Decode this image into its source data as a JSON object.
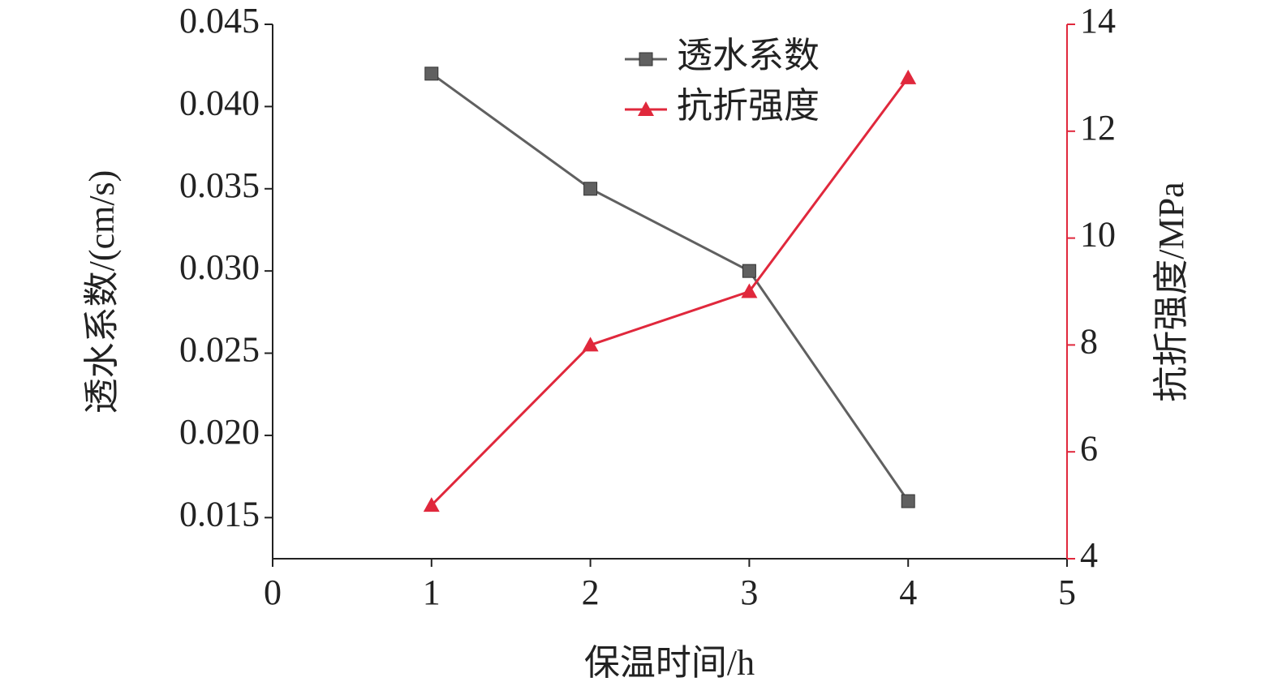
{
  "chart_data": {
    "type": "line",
    "x_label": "保温时间/h",
    "y_label": "透水系数/(cm/s)",
    "y2_label": "抗折强度/MPa",
    "x": [
      1,
      2,
      3,
      4
    ],
    "xlim": [
      0,
      5
    ],
    "xticks": [
      0,
      1,
      2,
      3,
      4,
      5
    ],
    "ylim": [
      0.0125,
      0.045
    ],
    "yticks": [
      0.015,
      {
        "value": 0.02,
        "label": "0.020"
      },
      0.025,
      {
        "value": 0.03,
        "label": "0.030"
      },
      0.035,
      {
        "value": 0.04,
        "label": "0.040"
      },
      0.045
    ],
    "y2lim": [
      4,
      14
    ],
    "y2ticks": [
      4,
      6,
      8,
      10,
      12,
      14
    ],
    "y2_color": "#e0283c",
    "legend": "top-center",
    "series": [
      {
        "name": "透水系数",
        "color": "#606060",
        "marker": "square",
        "values": [
          0.042,
          0.035,
          0.03,
          0.016
        ]
      },
      {
        "name": "抗折强度",
        "color": "#e0283c",
        "marker": "triangle",
        "axis": "y2",
        "values": [
          5,
          8,
          9,
          13
        ]
      }
    ]
  }
}
